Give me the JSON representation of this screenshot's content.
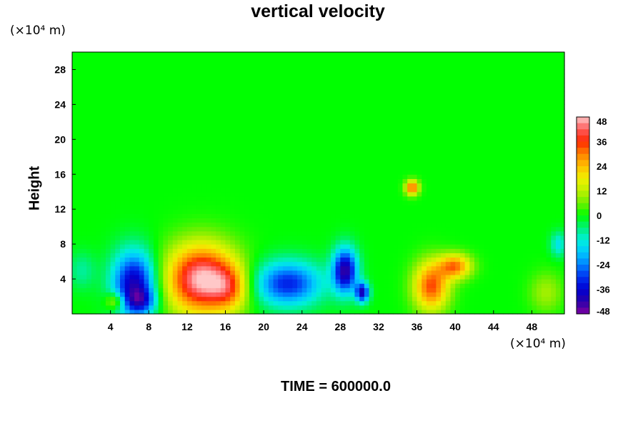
{
  "chart_data": {
    "type": "heatmap",
    "title": "vertical velocity",
    "ylabel": "Height",
    "y_unit": "(×10⁴ m)",
    "x_unit": "(×10⁴ m)",
    "xlim": [
      0,
      51.4
    ],
    "ylim": [
      0,
      30
    ],
    "x_ticks": [
      "4",
      "8",
      "12",
      "16",
      "20",
      "24",
      "28",
      "32",
      "36",
      "40",
      "44",
      "48"
    ],
    "x_tick_values": [
      4,
      8,
      12,
      16,
      20,
      24,
      28,
      32,
      36,
      40,
      44,
      48
    ],
    "y_ticks": [
      "4",
      "8",
      "12",
      "16",
      "20",
      "24",
      "28"
    ],
    "y_tick_values": [
      4,
      8,
      12,
      16,
      20,
      24,
      28
    ],
    "colorbar": {
      "min": -48,
      "max": 48,
      "tick_labels": [
        "48",
        "36",
        "24",
        "12",
        "0",
        "-12",
        "-24",
        "-36",
        "-48"
      ],
      "tick_values": [
        48,
        36,
        24,
        12,
        0,
        -12,
        -24,
        -36,
        -48
      ]
    },
    "background_value": 0,
    "features": [
      {
        "x": 6.5,
        "y": 3.5,
        "sx": 1.6,
        "sy": 2.6,
        "value": -40
      },
      {
        "x": 7.2,
        "y": 1.5,
        "sx": 1.1,
        "sy": 1.0,
        "value": -18
      },
      {
        "x": 13.5,
        "y": 4.0,
        "sx": 2.6,
        "sy": 2.8,
        "value": 48
      },
      {
        "x": 16.5,
        "y": 3.0,
        "sx": 1.4,
        "sy": 1.8,
        "value": 18
      },
      {
        "x": 22.5,
        "y": 3.5,
        "sx": 2.5,
        "sy": 1.8,
        "value": -32
      },
      {
        "x": 28.5,
        "y": 5.0,
        "sx": 0.9,
        "sy": 1.8,
        "value": -42
      },
      {
        "x": 30.3,
        "y": 2.5,
        "sx": 0.5,
        "sy": 0.8,
        "value": -38
      },
      {
        "x": 37.5,
        "y": 3.2,
        "sx": 1.3,
        "sy": 2.0,
        "value": 34
      },
      {
        "x": 40.0,
        "y": 5.5,
        "sx": 1.2,
        "sy": 1.0,
        "value": 30
      },
      {
        "x": 35.5,
        "y": 14.5,
        "sx": 0.5,
        "sy": 0.6,
        "value": 34
      },
      {
        "x": 4.5,
        "y": 1.5,
        "sx": 0.7,
        "sy": 0.7,
        "value": 18
      },
      {
        "x": 49.5,
        "y": 2.5,
        "sx": 1.2,
        "sy": 1.6,
        "value": 10
      },
      {
        "x": 50.8,
        "y": 8.0,
        "sx": 0.6,
        "sy": 1.0,
        "value": -14
      },
      {
        "x": 1.0,
        "y": 5.0,
        "sx": 1.0,
        "sy": 1.5,
        "value": -8
      }
    ]
  },
  "footer": {
    "time_label": "TIME = 600000.0"
  }
}
